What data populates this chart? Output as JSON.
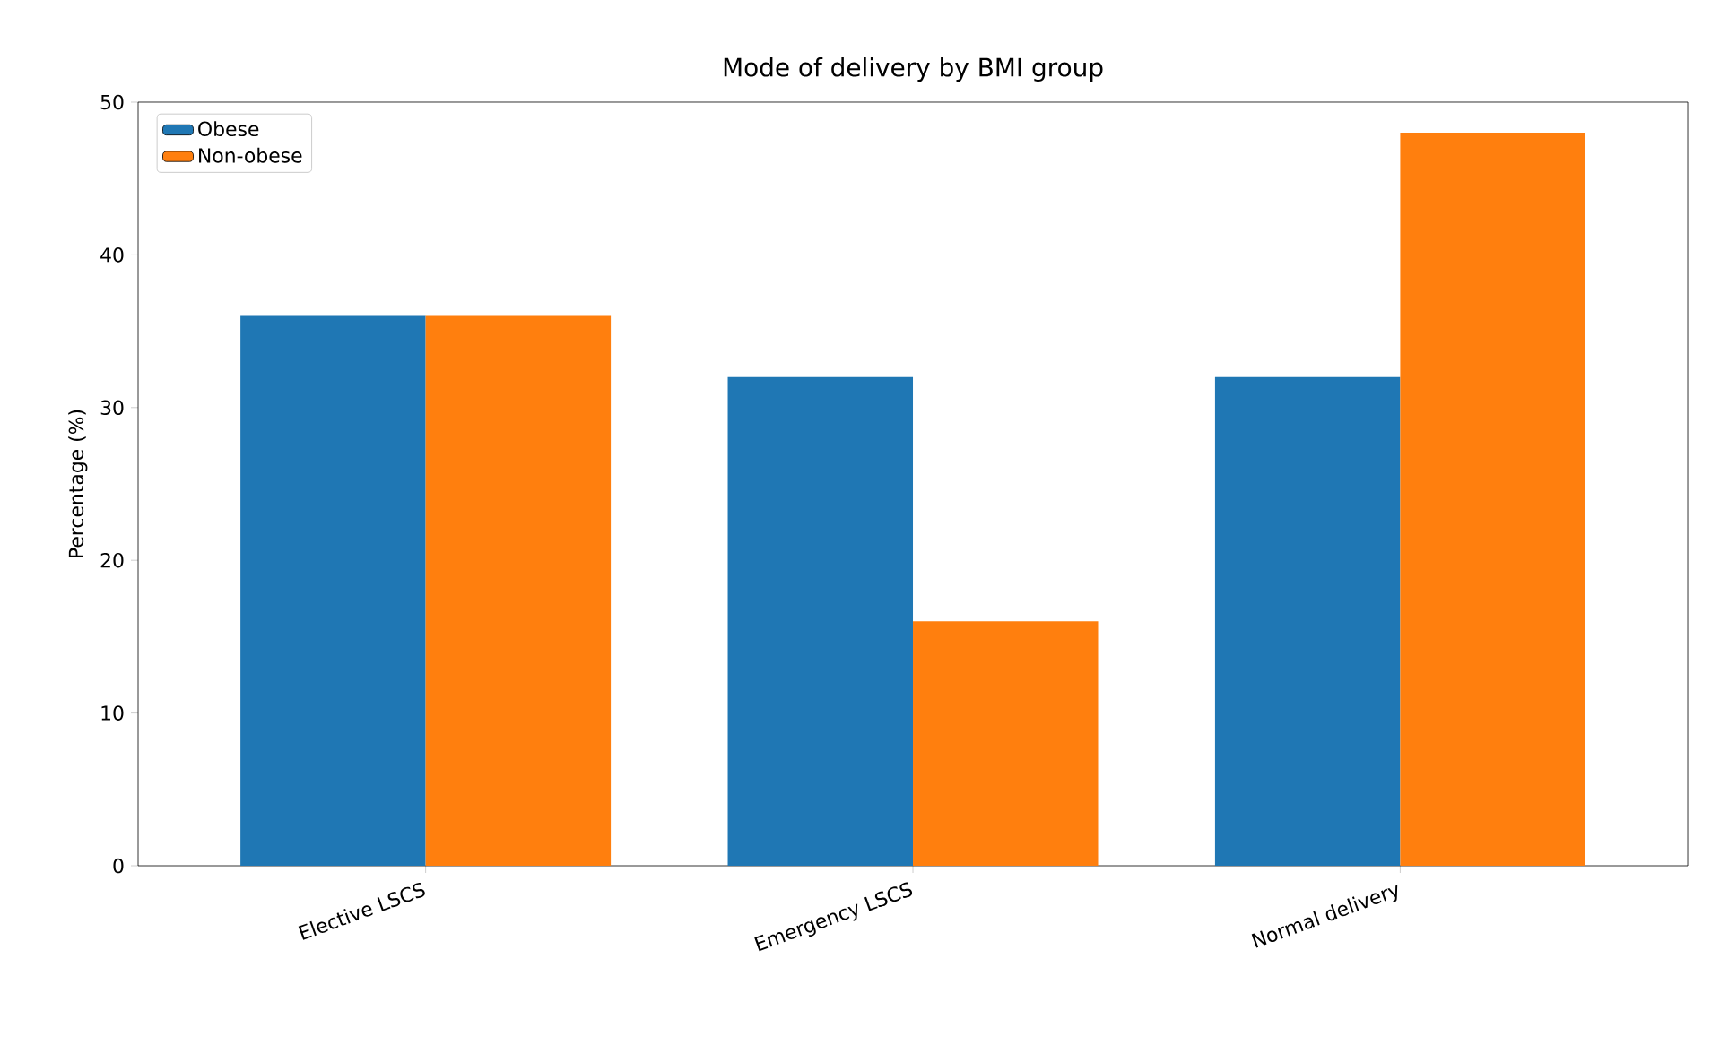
{
  "chart_data": {
    "type": "bar",
    "title": "Mode of delivery by BMI group",
    "ylabel": "Percentage (%)",
    "categories": [
      "Elective LSCS",
      "Emergency LSCS",
      "Normal delivery"
    ],
    "series": [
      {
        "name": "Obese",
        "color": "#1f77b4",
        "values": [
          36,
          32,
          32
        ]
      },
      {
        "name": "Non-obese",
        "color": "#ff7f0e",
        "values": [
          36,
          16,
          48
        ]
      }
    ],
    "ylim": [
      0,
      50
    ],
    "yticks": [
      0,
      10,
      20,
      30,
      40,
      50
    ],
    "legend": "top left"
  }
}
